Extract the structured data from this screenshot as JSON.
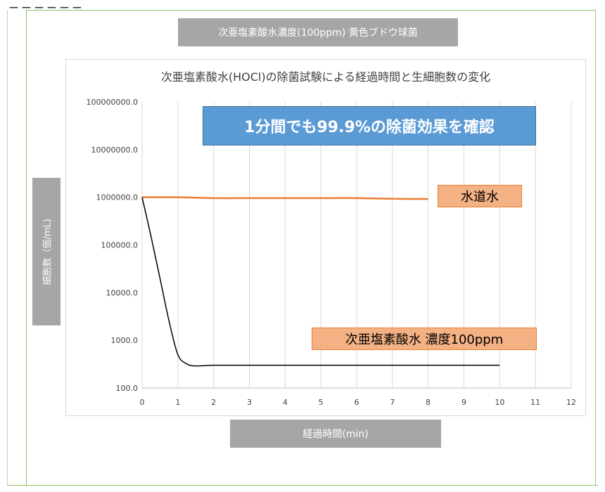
{
  "chart_data": {
    "type": "line",
    "title": "次亜塩素酸水(HOCl)の除菌試験による経過時間と生細胞数の変化",
    "header_label": "次亜塩素酸水濃度(100ppm) 黄色ブドウ球菌",
    "xlabel": "経過時間(min)",
    "ylabel": "細胞数（個/mL)",
    "x_ticks": [
      0,
      1,
      2,
      3,
      4,
      5,
      6,
      7,
      8,
      9,
      10,
      11,
      12
    ],
    "y_tick_labels": [
      "100000000.0",
      "10000000.0",
      "1000000.0",
      "100000.0",
      "10000.0",
      "1000.0",
      "100.0"
    ],
    "y_scale": "log",
    "xlim": [
      0,
      12
    ],
    "ylim": [
      100,
      100000000
    ],
    "grid": "vertical",
    "banner": "1分間でも99.9%の除菌効果を確認",
    "series": [
      {
        "name": "水道水",
        "color": "#ed7d31",
        "x": [
          0,
          1,
          2,
          3,
          4,
          5,
          6,
          7,
          8
        ],
        "values": [
          1000000,
          1000000,
          960000,
          960000,
          960000,
          960000,
          960000,
          930000,
          920000
        ]
      },
      {
        "name": "次亜塩素酸水 濃度100ppm",
        "color": "#000000",
        "x": [
          0,
          0.25,
          0.5,
          0.75,
          1,
          1.25,
          1.5,
          2,
          2.5,
          3,
          4,
          5,
          6,
          7,
          8,
          9,
          10
        ],
        "values": [
          1000000,
          150000,
          20000,
          2600,
          500,
          320,
          290,
          300,
          300,
          300,
          300,
          300,
          300,
          300,
          300,
          300,
          300
        ]
      }
    ]
  }
}
